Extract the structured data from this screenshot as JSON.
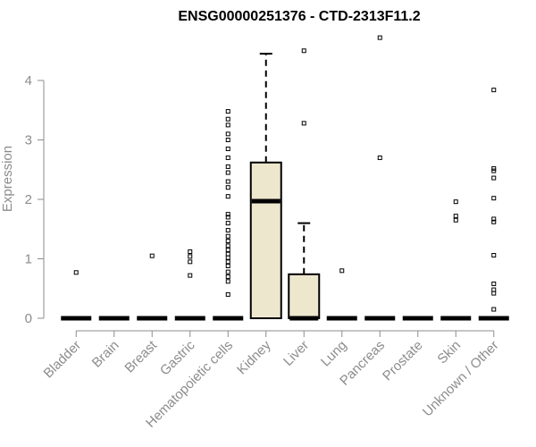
{
  "chart_data": {
    "type": "boxplot",
    "title": "ENSG00000251376 - CTD-2313F11.2",
    "xlabel": "",
    "ylabel": "Expression",
    "ylim": [
      0,
      4.7
    ],
    "y_ticks": [
      0,
      1,
      2,
      3,
      4
    ],
    "grid": false,
    "legend": "none",
    "box_fill": "#ede7ce",
    "categories": [
      "Bladder",
      "Brain",
      "Breast",
      "Gastric",
      "Hematopoietic cells",
      "Kidney",
      "Liver",
      "Lung",
      "Pancreas",
      "Prostate",
      "Skin",
      "Unknown / Other"
    ],
    "boxes": [
      {
        "category": "Bladder",
        "q1": 0,
        "median": 0,
        "q3": 0,
        "whisker_low": 0,
        "whisker_high": 0,
        "outliers": [
          0.77
        ]
      },
      {
        "category": "Brain",
        "q1": 0,
        "median": 0,
        "q3": 0,
        "whisker_low": 0,
        "whisker_high": 0,
        "outliers": []
      },
      {
        "category": "Breast",
        "q1": 0,
        "median": 0,
        "q3": 0,
        "whisker_low": 0,
        "whisker_high": 0,
        "outliers": [
          1.05
        ]
      },
      {
        "category": "Gastric",
        "q1": 0,
        "median": 0,
        "q3": 0,
        "whisker_low": 0,
        "whisker_high": 0,
        "outliers": [
          0.72,
          0.95,
          1.04,
          1.12
        ]
      },
      {
        "category": "Hematopoietic cells",
        "q1": 0,
        "median": 0,
        "q3": 0,
        "whisker_low": 0,
        "whisker_high": 0,
        "outliers": [
          0.4,
          0.62,
          0.7,
          0.78,
          0.88,
          0.95,
          1.02,
          1.08,
          1.15,
          1.22,
          1.3,
          1.38,
          1.48,
          1.6,
          1.7,
          1.75,
          2.05,
          2.2,
          2.3,
          2.45,
          2.55,
          2.7,
          2.85,
          3.0,
          3.1,
          3.25,
          3.35,
          3.48
        ]
      },
      {
        "category": "Kidney",
        "q1": 0,
        "median": 1.97,
        "q3": 2.62,
        "whisker_low": 0,
        "whisker_high": 4.45,
        "outliers": []
      },
      {
        "category": "Liver",
        "q1": 0,
        "median": 0,
        "q3": 0.74,
        "whisker_low": 0,
        "whisker_high": 1.6,
        "outliers": [
          3.28,
          4.5
        ]
      },
      {
        "category": "Lung",
        "q1": 0,
        "median": 0,
        "q3": 0,
        "whisker_low": 0,
        "whisker_high": 0,
        "outliers": [
          0.8
        ]
      },
      {
        "category": "Pancreas",
        "q1": 0,
        "median": 0,
        "q3": 0,
        "whisker_low": 0,
        "whisker_high": 0,
        "outliers": [
          2.7,
          4.72
        ]
      },
      {
        "category": "Prostate",
        "q1": 0,
        "median": 0,
        "q3": 0,
        "whisker_low": 0,
        "whisker_high": 0,
        "outliers": []
      },
      {
        "category": "Skin",
        "q1": 0,
        "median": 0,
        "q3": 0,
        "whisker_low": 0,
        "whisker_high": 0,
        "outliers": [
          1.65,
          1.72,
          1.96
        ]
      },
      {
        "category": "Unknown / Other",
        "q1": 0,
        "median": 0,
        "q3": 0,
        "whisker_low": 0,
        "whisker_high": 0,
        "outliers": [
          0.15,
          0.42,
          0.48,
          0.58,
          1.06,
          1.62,
          1.67,
          2.02,
          2.36,
          2.48,
          2.52,
          3.84
        ]
      }
    ]
  }
}
